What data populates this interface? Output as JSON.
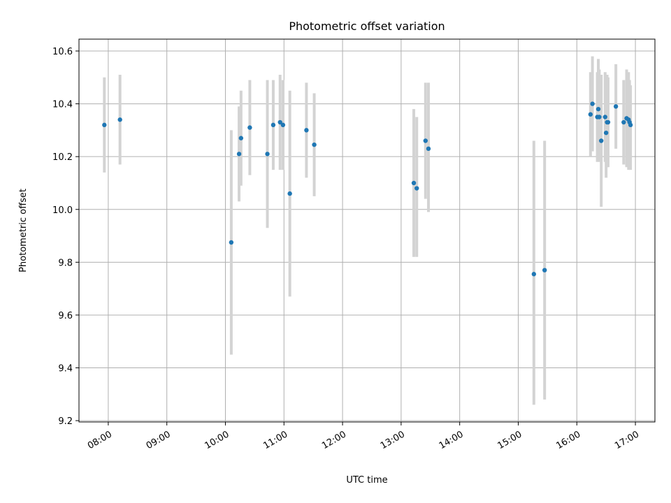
{
  "chart_data": {
    "type": "scatter",
    "title": "Photometric offset variation",
    "xlabel": "UTC time",
    "ylabel": "Photometric offset",
    "xlim": [
      "07:30",
      "17:20"
    ],
    "ylim": [
      9.195,
      10.645
    ],
    "x_ticks": [
      "08:00",
      "09:00",
      "10:00",
      "11:00",
      "12:00",
      "13:00",
      "14:00",
      "15:00",
      "16:00",
      "17:00"
    ],
    "y_ticks": [
      9.2,
      9.4,
      9.6,
      9.8,
      10.0,
      10.2,
      10.4,
      10.6
    ],
    "y_tick_labels": [
      "9.2",
      "9.4",
      "9.6",
      "9.8",
      "10.0",
      "10.2",
      "10.4",
      "10.6"
    ],
    "grid": true,
    "colors": {
      "marker": "#1f77b4",
      "errorbar": "#d3d3d3",
      "grid": "#b0b0b0"
    },
    "points": [
      {
        "t": "07:56",
        "y": 10.32,
        "lo": 10.14,
        "hi": 10.5
      },
      {
        "t": "08:12",
        "y": 10.34,
        "lo": 10.17,
        "hi": 10.51
      },
      {
        "t": "10:06",
        "y": 9.875,
        "lo": 9.45,
        "hi": 10.3
      },
      {
        "t": "10:14",
        "y": 10.21,
        "lo": 10.03,
        "hi": 10.39
      },
      {
        "t": "10:16",
        "y": 10.27,
        "lo": 10.09,
        "hi": 10.45
      },
      {
        "t": "10:25",
        "y": 10.31,
        "lo": 10.13,
        "hi": 10.49
      },
      {
        "t": "10:43",
        "y": 10.21,
        "lo": 9.93,
        "hi": 10.49
      },
      {
        "t": "10:49",
        "y": 10.32,
        "lo": 10.15,
        "hi": 10.49
      },
      {
        "t": "10:56",
        "y": 10.33,
        "lo": 10.15,
        "hi": 10.51
      },
      {
        "t": "10:59",
        "y": 10.32,
        "lo": 10.15,
        "hi": 10.49
      },
      {
        "t": "11:06",
        "y": 10.06,
        "lo": 9.67,
        "hi": 10.45
      },
      {
        "t": "11:23",
        "y": 10.3,
        "lo": 10.12,
        "hi": 10.48
      },
      {
        "t": "11:31",
        "y": 10.245,
        "lo": 10.05,
        "hi": 10.44
      },
      {
        "t": "13:13",
        "y": 10.1,
        "lo": 9.82,
        "hi": 10.38
      },
      {
        "t": "13:16",
        "y": 10.08,
        "lo": 9.82,
        "hi": 10.35
      },
      {
        "t": "13:25",
        "y": 10.26,
        "lo": 10.04,
        "hi": 10.48
      },
      {
        "t": "13:28",
        "y": 10.23,
        "lo": 9.99,
        "hi": 10.48
      },
      {
        "t": "15:16",
        "y": 9.755,
        "lo": 9.26,
        "hi": 10.26
      },
      {
        "t": "15:27",
        "y": 9.77,
        "lo": 9.28,
        "hi": 10.26
      },
      {
        "t": "16:14",
        "y": 10.36,
        "lo": 10.2,
        "hi": 10.52
      },
      {
        "t": "16:16",
        "y": 10.4,
        "lo": 10.22,
        "hi": 10.58
      },
      {
        "t": "16:21",
        "y": 10.35,
        "lo": 10.18,
        "hi": 10.52
      },
      {
        "t": "16:22",
        "y": 10.38,
        "lo": 10.19,
        "hi": 10.57
      },
      {
        "t": "16:23",
        "y": 10.35,
        "lo": 10.18,
        "hi": 10.53
      },
      {
        "t": "16:25",
        "y": 10.26,
        "lo": 10.01,
        "hi": 10.51
      },
      {
        "t": "16:29",
        "y": 10.35,
        "lo": 10.18,
        "hi": 10.52
      },
      {
        "t": "16:30",
        "y": 10.29,
        "lo": 10.12,
        "hi": 10.46
      },
      {
        "t": "16:31",
        "y": 10.33,
        "lo": 10.16,
        "hi": 10.51
      },
      {
        "t": "16:32",
        "y": 10.33,
        "lo": 10.16,
        "hi": 10.5
      },
      {
        "t": "16:40",
        "y": 10.39,
        "lo": 10.23,
        "hi": 10.55
      },
      {
        "t": "16:48",
        "y": 10.33,
        "lo": 10.17,
        "hi": 10.49
      },
      {
        "t": "16:51",
        "y": 10.345,
        "lo": 10.16,
        "hi": 10.53
      },
      {
        "t": "16:53",
        "y": 10.34,
        "lo": 10.15,
        "hi": 10.52
      },
      {
        "t": "16:54",
        "y": 10.33,
        "lo": 10.17,
        "hi": 10.49
      },
      {
        "t": "16:55",
        "y": 10.32,
        "lo": 10.15,
        "hi": 10.47
      }
    ]
  }
}
